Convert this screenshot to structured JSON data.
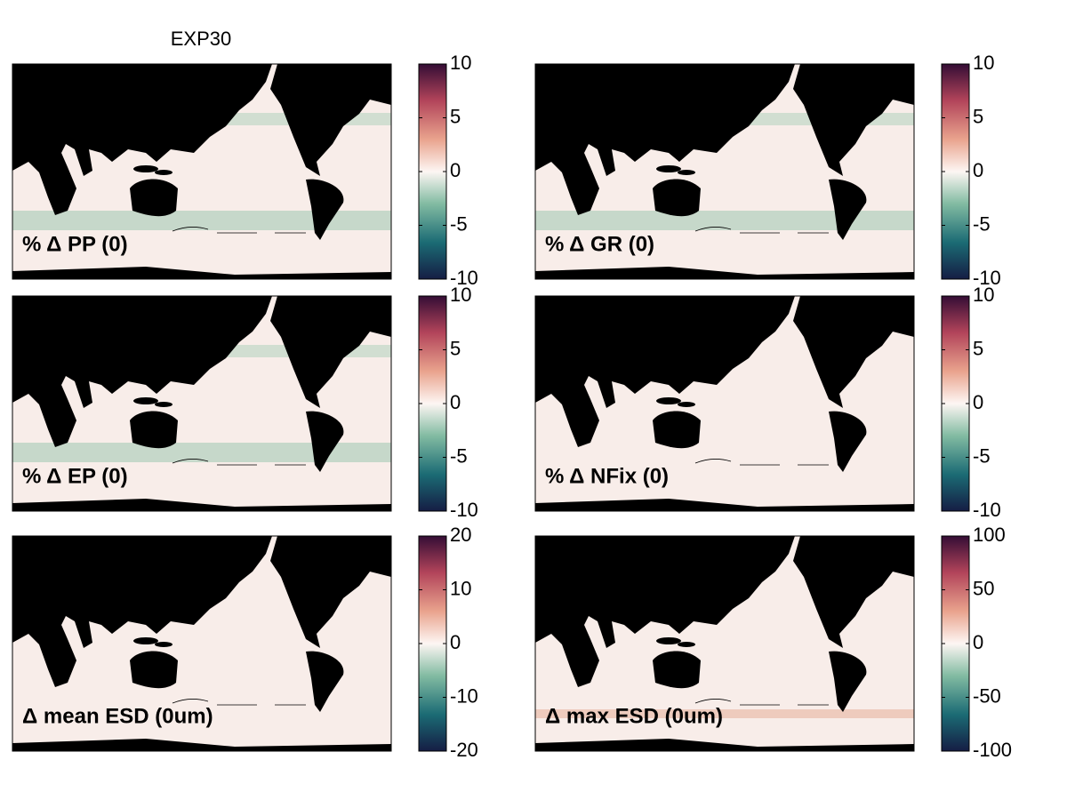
{
  "title": "EXP30",
  "panels": [
    {
      "label": "% Δ PP (0)",
      "colorbar": {
        "lim": [
          -10,
          10
        ],
        "ticks": [
          -10,
          -5,
          0,
          5,
          10
        ]
      }
    },
    {
      "label": "% Δ GR (0)",
      "colorbar": {
        "lim": [
          -10,
          10
        ],
        "ticks": [
          -10,
          -5,
          0,
          5,
          10
        ]
      }
    },
    {
      "label": "% Δ EP (0)",
      "colorbar": {
        "lim": [
          -10,
          10
        ],
        "ticks": [
          -10,
          -5,
          0,
          5,
          10
        ]
      }
    },
    {
      "label": "% Δ NFix (0)",
      "colorbar": {
        "lim": [
          -10,
          10
        ],
        "ticks": [
          -10,
          -5,
          0,
          5,
          10
        ]
      }
    },
    {
      "label": "Δ mean ESD (0um)",
      "colorbar": {
        "lim": [
          -20,
          20
        ],
        "ticks": [
          -20,
          -10,
          0,
          10,
          20
        ]
      }
    },
    {
      "label": "Δ max ESD (0um)",
      "colorbar": {
        "lim": [
          -100,
          100
        ],
        "ticks": [
          -100,
          -50,
          0,
          50,
          100
        ]
      }
    }
  ]
}
